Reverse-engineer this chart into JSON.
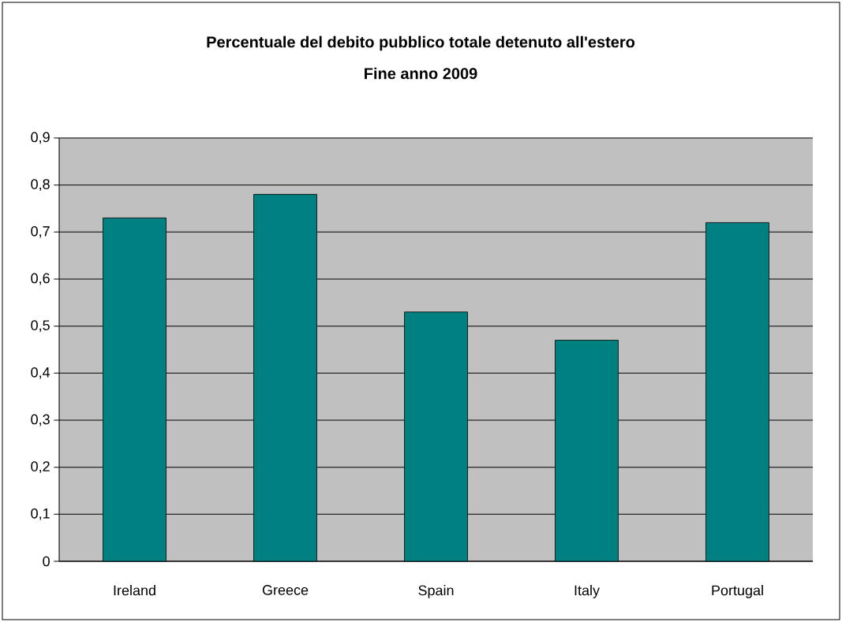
{
  "chart_data": {
    "type": "bar",
    "title": "Percentuale del debito pubblico totale detenuto all'estero",
    "subtitle": "Fine anno 2009",
    "categories": [
      "Ireland",
      "Greece",
      "Spain",
      "Italy",
      "Portugal"
    ],
    "values": [
      0.73,
      0.78,
      0.53,
      0.47,
      0.72
    ],
    "color": "#008080",
    "ylim": [
      0,
      0.9
    ],
    "yticks": [
      {
        "value": 0,
        "label": "0"
      },
      {
        "value": 0.1,
        "label": "0,1"
      },
      {
        "value": 0.2,
        "label": "0,2"
      },
      {
        "value": 0.3,
        "label": "0,3"
      },
      {
        "value": 0.4,
        "label": "0,4"
      },
      {
        "value": 0.5,
        "label": "0,5"
      },
      {
        "value": 0.6,
        "label": "0,6"
      },
      {
        "value": 0.7,
        "label": "0,7"
      },
      {
        "value": 0.8,
        "label": "0,8"
      },
      {
        "value": 0.9,
        "label": "0,9"
      }
    ],
    "grid": "y"
  }
}
